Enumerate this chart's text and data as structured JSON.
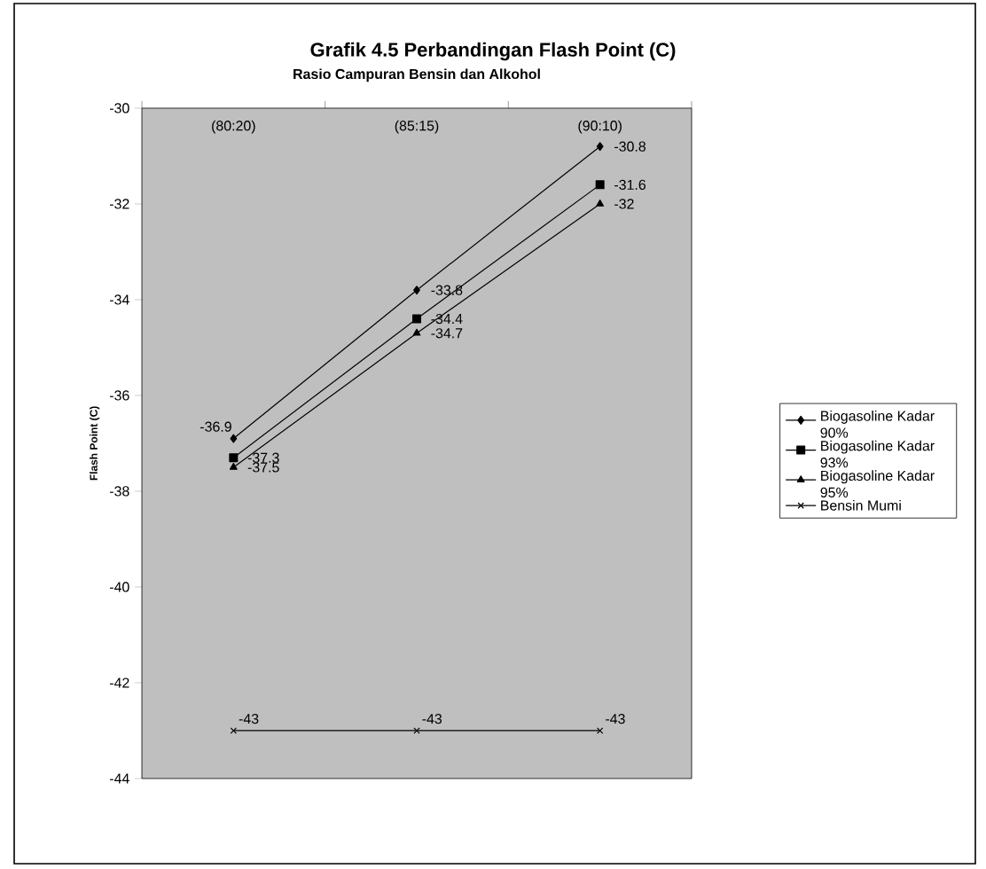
{
  "chart_data": {
    "type": "line",
    "title": "Grafik 4.5 Perbandingan Flash Point (C)",
    "xlabel": "Rasio Campuran Bensin dan Alkohol",
    "ylabel": "Flash Point (C)",
    "categories": [
      "(80:20)",
      "(85:15)",
      "(90:10)"
    ],
    "series": [
      {
        "name": "Biogasoline Kadar 90%",
        "color": "#000000",
        "marker": "diamond",
        "values": [
          -36.9,
          -33.8,
          -30.8
        ]
      },
      {
        "name": "Biogasoline Kadar 93%",
        "color": "#000000",
        "marker": "square",
        "values": [
          -37.3,
          -34.4,
          -31.6
        ]
      },
      {
        "name": "Biogasoline Kadar 95%",
        "color": "#000000",
        "marker": "triangle",
        "values": [
          -37.5,
          -34.7,
          -32
        ]
      },
      {
        "name": "Bensin Mumi",
        "color": "#000000",
        "marker": "cross",
        "values": [
          -43,
          -43,
          -43
        ]
      }
    ],
    "ylim": [
      -44,
      -30
    ],
    "yticks": [
      -30,
      -32,
      -34,
      -36,
      -38,
      -40,
      -42,
      -44
    ],
    "legend": "right",
    "data_labels": true
  }
}
